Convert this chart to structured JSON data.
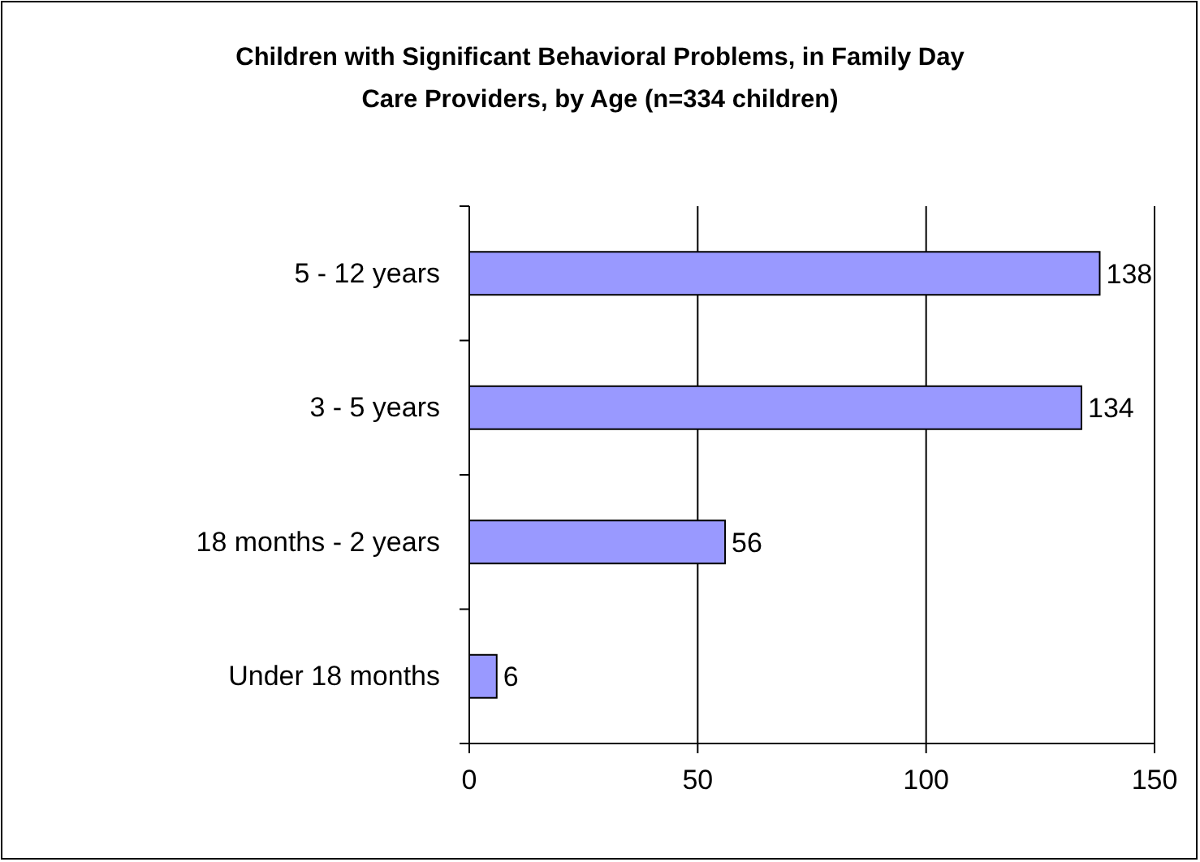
{
  "chart_data": {
    "type": "bar",
    "orientation": "horizontal",
    "title": "Children with Significant Behavioral Problems, in Family Day Care Providers, by Age (n=334 children)",
    "categories": [
      "5 - 12 years",
      "3 - 5 years",
      "18 months - 2 years",
      "Under 18 months"
    ],
    "values": [
      138,
      134,
      56,
      6
    ],
    "color": "#9999ff",
    "xlim": [
      0,
      150
    ],
    "xticks": [
      0,
      50,
      100,
      150
    ],
    "grid": "x",
    "data_labels": true
  }
}
